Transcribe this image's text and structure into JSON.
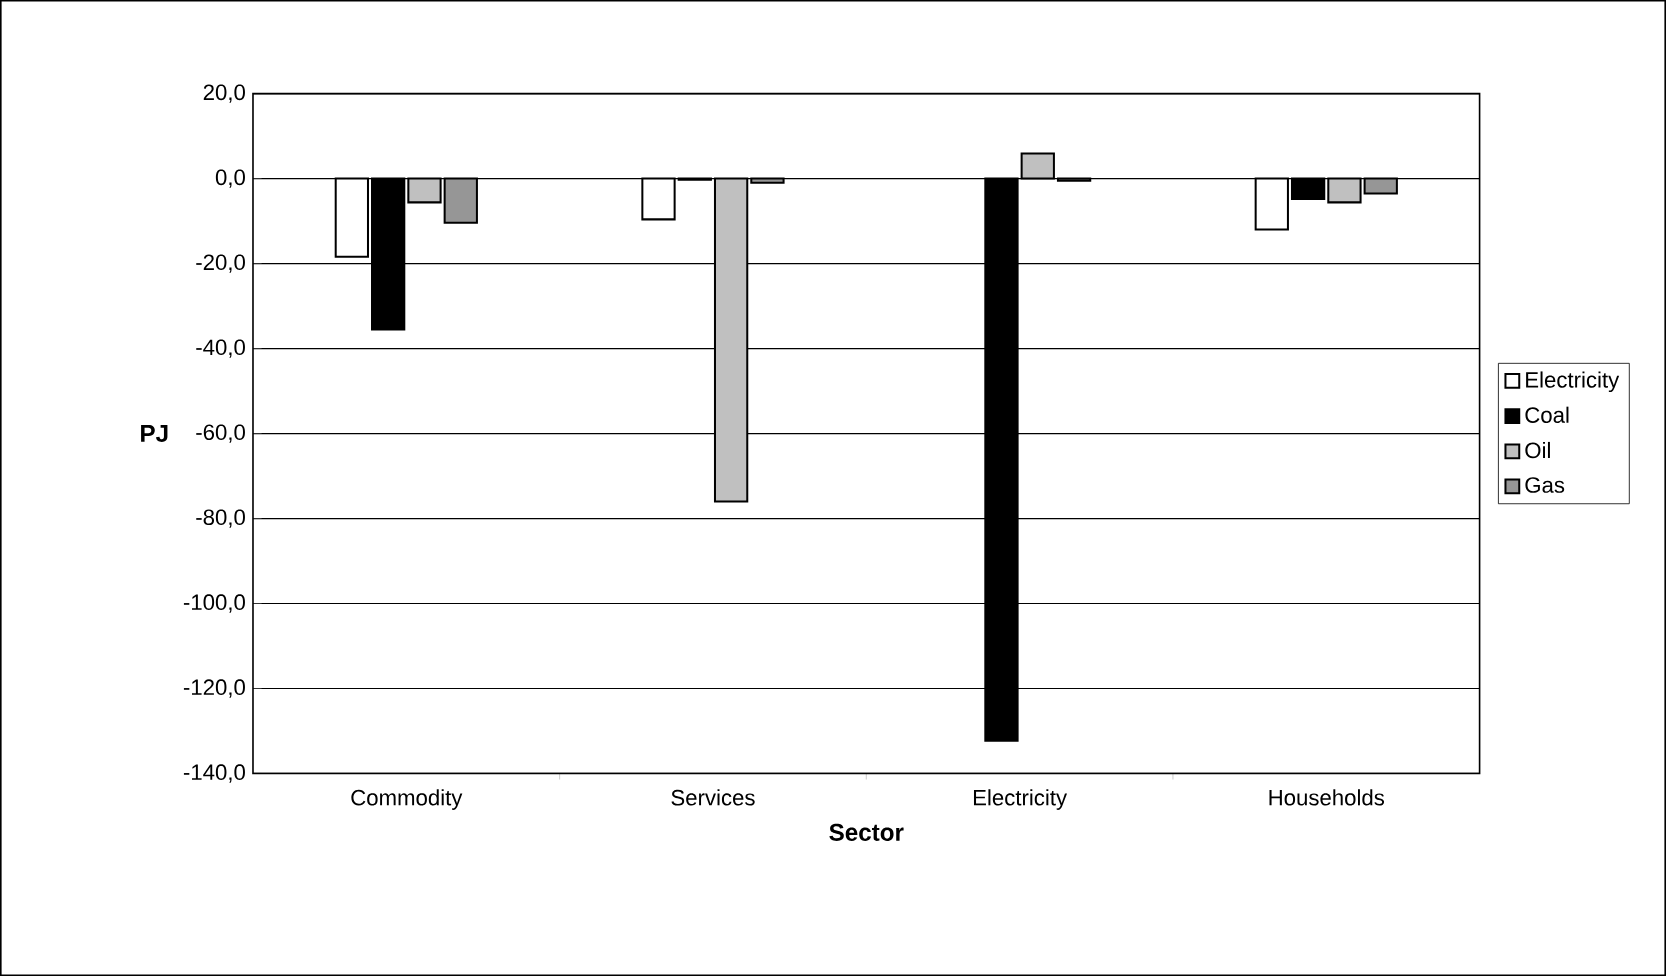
{
  "chart_data": {
    "type": "bar",
    "xlabel": "Sector",
    "ylabel": "PJ",
    "categories": [
      "Commodity",
      "Services",
      "Electricity",
      "Households"
    ],
    "series": [
      {
        "name": "Electricity",
        "color": "#ffffff",
        "values": [
          -18.4,
          -9.6,
          null,
          -12.0
        ]
      },
      {
        "name": "Coal",
        "color": "#000000",
        "values": [
          -35.5,
          -0.3,
          -132.3,
          -4.8
        ]
      },
      {
        "name": "Oil",
        "color": "#c0c0c0",
        "values": [
          -5.6,
          -76.0,
          5.9,
          -5.6
        ]
      },
      {
        "name": "Gas",
        "color": "#969696",
        "values": [
          -10.4,
          -1.0,
          -0.5,
          -3.5
        ]
      }
    ],
    "ylim": [
      -140,
      20
    ],
    "yticks": [
      {
        "value": -140,
        "label": "-140,0"
      },
      {
        "value": -120,
        "label": "-120,0"
      },
      {
        "value": -100,
        "label": "-100,0"
      },
      {
        "value": -80,
        "label": "-80,0"
      },
      {
        "value": -60,
        "label": "-60,0"
      },
      {
        "value": -40,
        "label": "-40,0"
      },
      {
        "value": -20,
        "label": "-20,0"
      },
      {
        "value": 0,
        "label": "0,0"
      },
      {
        "value": 20,
        "label": "20,0"
      }
    ],
    "grid": "y",
    "legend": "right"
  }
}
